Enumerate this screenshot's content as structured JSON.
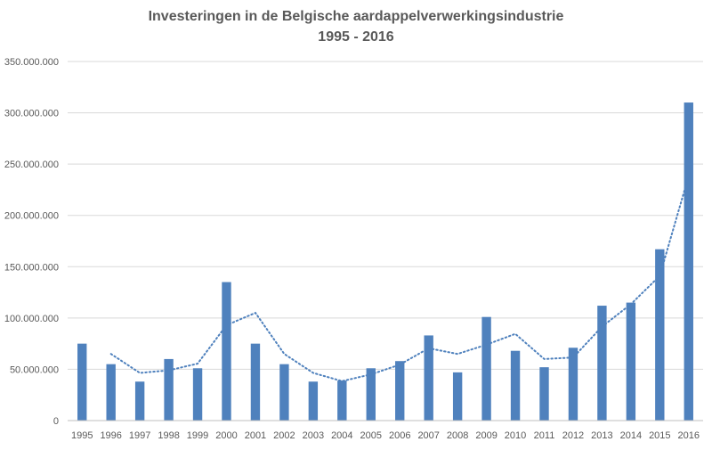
{
  "chart_data": {
    "type": "bar",
    "title": "Investeringen in de Belgische aardappelverwerkingsindustrie",
    "subtitle": "1995 - 2016",
    "categories": [
      "1995",
      "1996",
      "1997",
      "1998",
      "1999",
      "2000",
      "2001",
      "2002",
      "2003",
      "2004",
      "2005",
      "2006",
      "2007",
      "2008",
      "2009",
      "2010",
      "2011",
      "2012",
      "2013",
      "2014",
      "2015",
      "2016"
    ],
    "values": [
      75000000,
      55000000,
      38000000,
      60000000,
      51000000,
      135000000,
      75000000,
      55000000,
      38000000,
      39000000,
      51000000,
      58000000,
      83000000,
      47000000,
      101000000,
      68000000,
      52000000,
      71000000,
      112000000,
      115000000,
      167000000,
      310000000
    ],
    "trendline": {
      "type": "moving-average",
      "period": 2,
      "style": "dotted",
      "values": [
        null,
        65000000,
        46500000,
        49000000,
        55500000,
        93000000,
        105000000,
        65000000,
        46500000,
        38500000,
        45000000,
        54500000,
        70500000,
        65000000,
        74000000,
        84500000,
        60000000,
        61500000,
        91500000,
        113500000,
        141000000,
        238500000
      ]
    },
    "ylim": [
      0,
      350000000
    ],
    "yticks": [
      "0",
      "50.000.000",
      "100.000.000",
      "150.000.000",
      "200.000.000",
      "250.000.000",
      "300.000.000",
      "350.000.000"
    ],
    "grid": true,
    "legend": "none",
    "colors": {
      "bar": "#4F81BD",
      "trendline": "#4F81BD",
      "grid": "#D9D9D9",
      "text": "#595959"
    }
  }
}
